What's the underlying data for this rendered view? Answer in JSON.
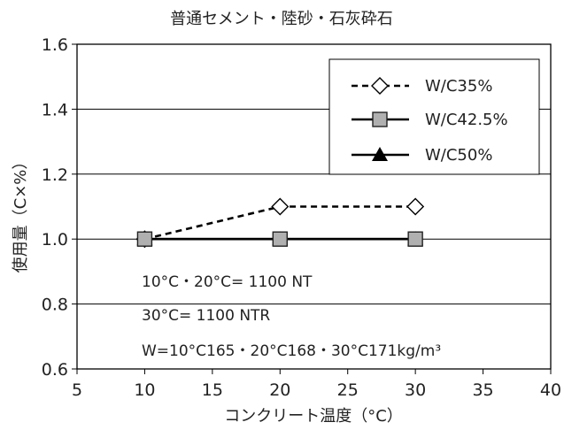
{
  "chart_data": {
    "type": "line",
    "title": "普通セメント・陸砂・石灰砕石",
    "xlabel": "コンクリート温度（°C）",
    "ylabel": "使用量（C×%）",
    "xlim": [
      5,
      40
    ],
    "ylim": [
      0.6,
      1.6
    ],
    "xticks": [
      "5",
      "10",
      "15",
      "20",
      "25",
      "30",
      "35",
      "40"
    ],
    "yticks": [
      "0.6",
      "0.8",
      "1.0",
      "1.2",
      "1.4",
      "1.6"
    ],
    "grid": "horizontal",
    "legend_position": "top-right",
    "series": [
      {
        "name": "W/C35%",
        "marker": "diamond-open",
        "line": "dashed",
        "x": [
          10,
          20,
          30
        ],
        "y": [
          1.0,
          1.1,
          1.1
        ]
      },
      {
        "name": "W/C42.5%",
        "marker": "square-gray",
        "line": "solid",
        "x": [
          10,
          20,
          30
        ],
        "y": [
          1.0,
          1.0,
          1.0
        ]
      },
      {
        "name": "W/C50%",
        "marker": "triangle-filled",
        "line": "solid",
        "x": [
          10,
          20,
          30
        ],
        "y": [
          1.0,
          1.0,
          1.0
        ]
      }
    ],
    "annotations": [
      "10°C・20°C= 1100 NT",
      "30°C= 1100 NTR",
      "W=10°C165・20°C168・30°C171kg/m³"
    ],
    "colors": {
      "line": "#000000",
      "square_fill": "#b0b0b0",
      "grid": "#000000"
    }
  }
}
